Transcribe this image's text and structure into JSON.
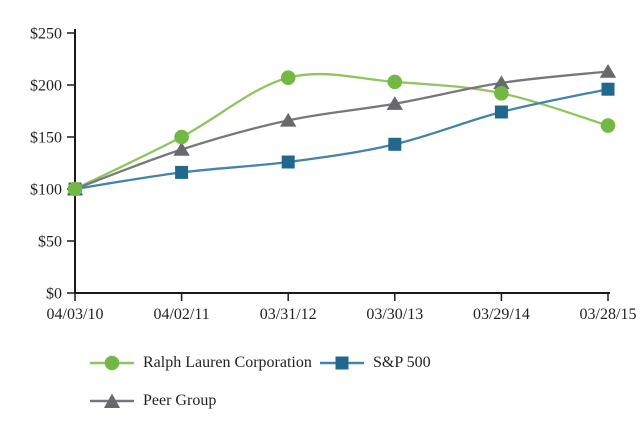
{
  "chart_data": {
    "type": "line",
    "title": "",
    "categories": [
      "04/03/10",
      "04/02/11",
      "03/31/12",
      "03/30/13",
      "03/29/14",
      "03/28/15"
    ],
    "series": [
      {
        "name": "Ralph Lauren Corporation",
        "marker": "circle",
        "color": "#72b843",
        "line_color": "#8fc45e",
        "values": [
          100,
          150,
          207,
          203,
          192,
          161
        ]
      },
      {
        "name": "S&P 500",
        "marker": "square",
        "color": "#21688f",
        "line_color": "#4484aa",
        "values": [
          100,
          116,
          126,
          143,
          174,
          196
        ]
      },
      {
        "name": "Peer Group",
        "marker": "triangle",
        "color": "#68696c",
        "line_color": "#77787b",
        "values": [
          100,
          138,
          166,
          182,
          202,
          213
        ]
      }
    ],
    "y_axis": {
      "ylim": [
        0,
        250
      ],
      "ticks": [
        0,
        50,
        100,
        150,
        200,
        250
      ],
      "tick_labels": [
        "$0",
        "$50",
        "$100",
        "$150",
        "$200",
        "$250"
      ]
    },
    "x_axis": {
      "tick_labels": [
        "04/03/10",
        "04/02/11",
        "03/31/12",
        "03/30/13",
        "03/29/14",
        "03/28/15"
      ]
    },
    "grid": false,
    "legend_position": "bottom",
    "axis_color": "#1a1a1a",
    "text_color": "#231f20"
  }
}
